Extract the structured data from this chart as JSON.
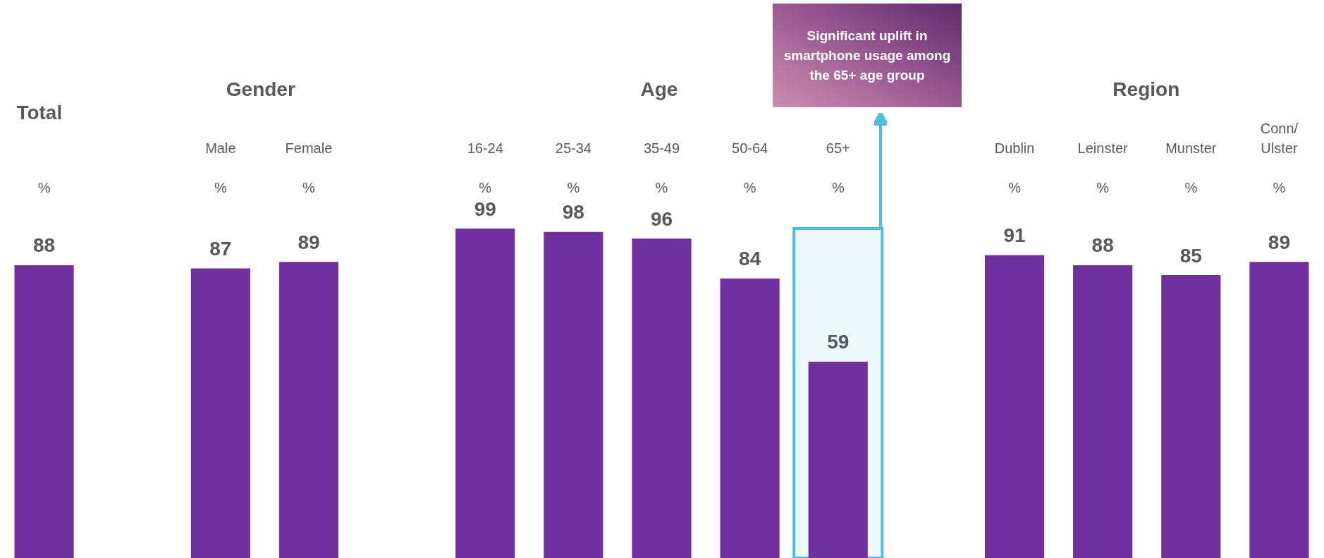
{
  "chart_data": {
    "type": "bar",
    "categories": [
      null,
      null,
      "Male",
      "Female",
      null,
      "16-24",
      "25-34",
      "35-49",
      "50-64",
      "65+",
      null,
      "Dublin",
      "Leinster",
      "Munster",
      "Conn/\nUlster"
    ],
    "values": [
      88,
      null,
      87,
      89,
      null,
      99,
      98,
      96,
      84,
      59,
      null,
      91,
      88,
      85,
      89
    ],
    "color": "#7030a0",
    "ylabel": "%",
    "data_labels": true,
    "annotations": [
      "Total",
      "Gender",
      "Age",
      "Region",
      "Significant uplift in smartphone usage among the 65+ age group"
    ],
    "bands": [
      {
        "axis": "x",
        "from": "65+",
        "to": "65+",
        "color": "#4dbde8"
      }
    ]
  }
}
